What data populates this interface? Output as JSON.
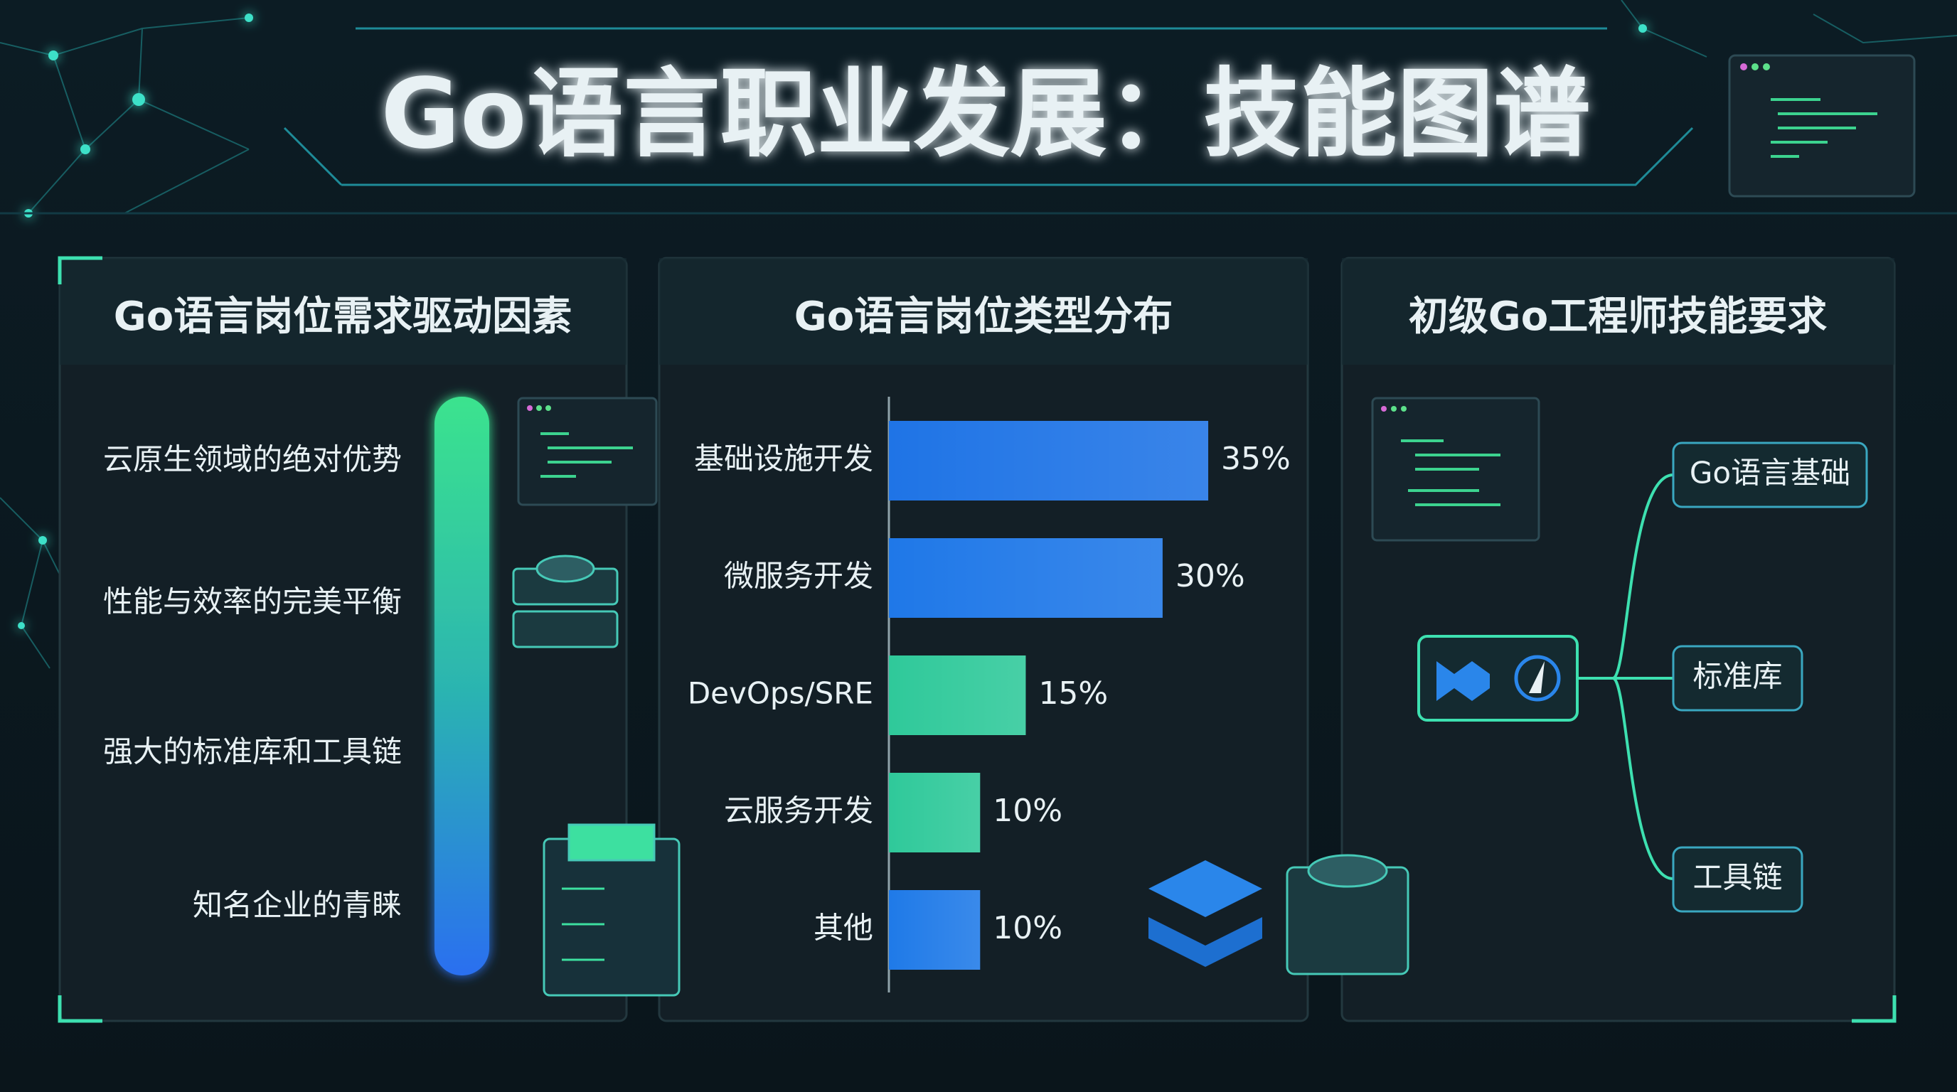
{
  "header": {
    "title": "Go语言职业发展：技能图谱"
  },
  "left_panel": {
    "title": "Go语言岗位需求驱动因素",
    "items": [
      "云原生领域的绝对优势",
      "性能与效率的完美平衡",
      "强大的标准库和工具链",
      "知名企业的青睐"
    ]
  },
  "chart_data": {
    "type": "bar",
    "orientation": "horizontal",
    "title": "Go语言岗位类型分布",
    "categories": [
      "基础设施开发",
      "微服务开发",
      "DevOps/SRE",
      "云服务开发",
      "其他"
    ],
    "values": [
      35,
      30,
      15,
      10,
      10
    ],
    "value_labels": [
      "35%",
      "30%",
      "15%",
      "10%",
      "10%"
    ],
    "colors": [
      "#1f74e6",
      "#1f78e8",
      "#2fc99a",
      "#2fc99a",
      "#1f7ae8"
    ]
  },
  "right_panel": {
    "title": "初级Go工程师技能要求",
    "nodes": [
      "Go语言基础",
      "标准库",
      "工具链"
    ]
  }
}
